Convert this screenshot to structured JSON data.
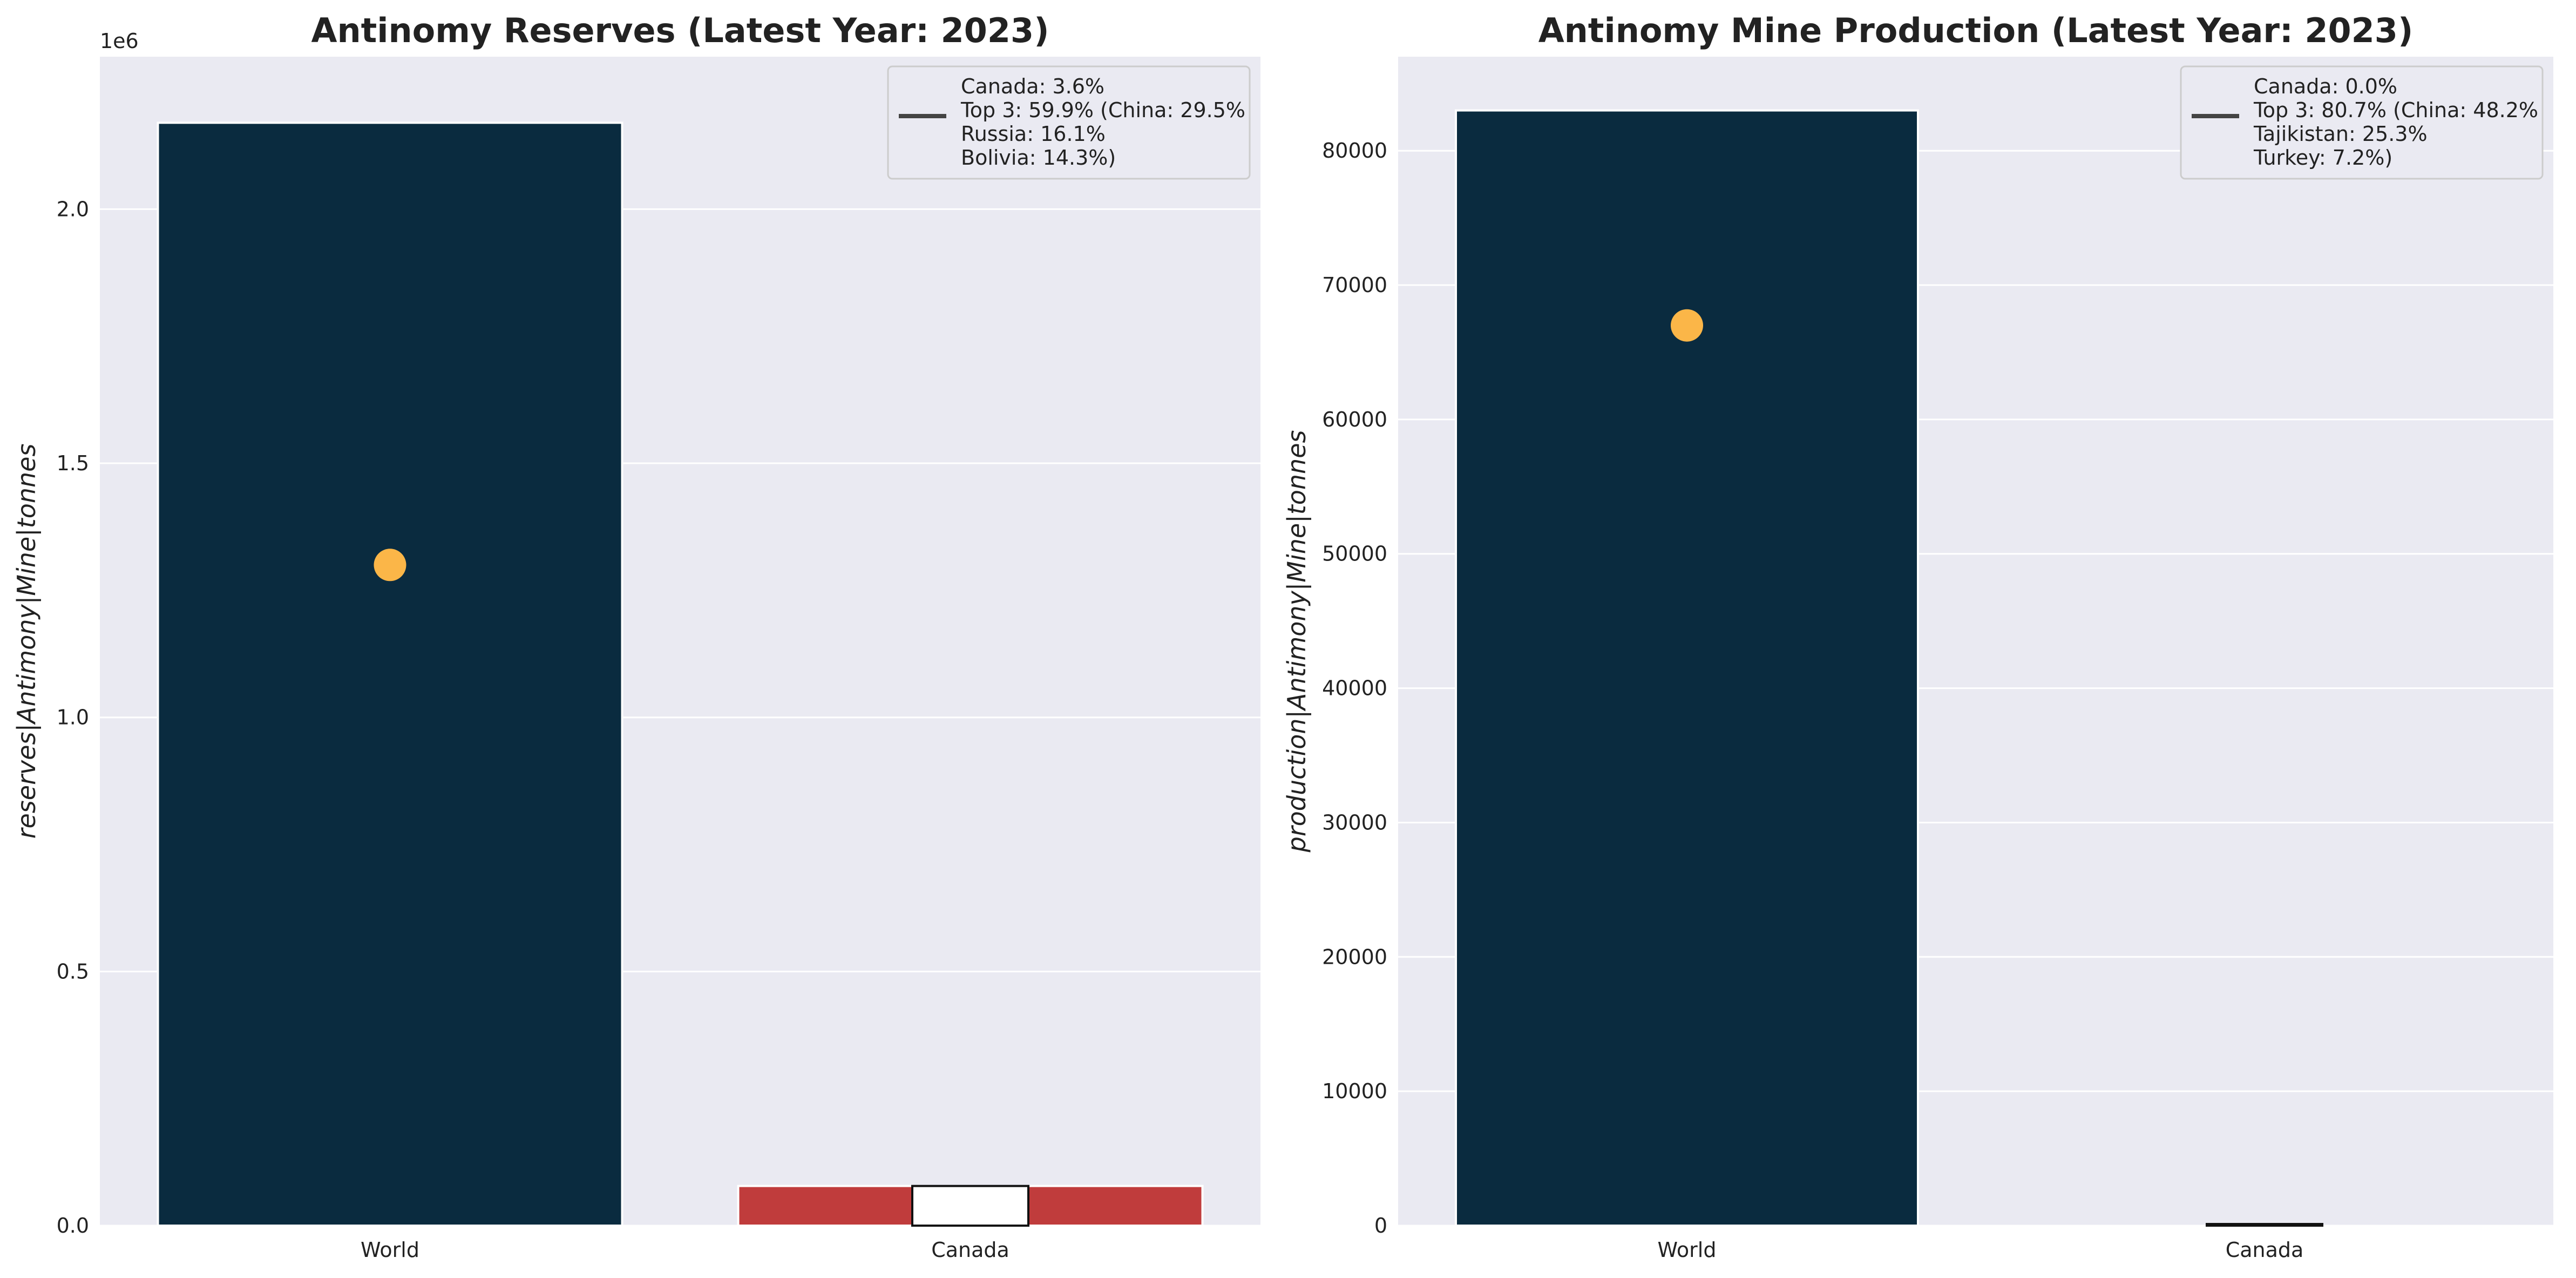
{
  "chart_data": [
    {
      "type": "bar",
      "title": "Antinomy Reserves (Latest Year: 2023)",
      "ylabel": "reserves|Antimony|Mine|tonnes",
      "offset_text": "1e6",
      "ylim": [
        0,
        2300000
      ],
      "yticks": [
        0,
        500000,
        1000000,
        1500000,
        2000000
      ],
      "ytick_labels": [
        "0.0",
        "0.5",
        "1.0",
        "1.5",
        "2.0"
      ],
      "categories": [
        "World",
        "Canada"
      ],
      "values": [
        2170000,
        78000
      ],
      "bar_colors": [
        "#0a2b3f",
        "#c03c3c"
      ],
      "overlay_box": {
        "category": "Canada",
        "value": 78000,
        "color": "#ffffff",
        "edge": "#111111"
      },
      "marker": {
        "category": "World",
        "value": 1300000,
        "color": "#fbb648"
      },
      "legend": {
        "placement": "top-right",
        "lines": [
          "Canada: 3.6%",
          "Top 3: 59.9% (China: 29.5%",
          "Russia: 16.1%",
          "Bolivia: 14.3%)"
        ],
        "line_color": "#444444"
      },
      "grid": true,
      "background": "#eaeaf2"
    },
    {
      "type": "bar",
      "title": "Antinomy Mine Production (Latest Year: 2023)",
      "ylabel": "production|Antimony|Mine|tonnes",
      "offset_text": "",
      "ylim": [
        0,
        87000
      ],
      "yticks": [
        0,
        10000,
        20000,
        30000,
        40000,
        50000,
        60000,
        70000,
        80000
      ],
      "ytick_labels": [
        "0",
        "10000",
        "20000",
        "30000",
        "40000",
        "50000",
        "60000",
        "70000",
        "80000"
      ],
      "categories": [
        "World",
        "Canada"
      ],
      "values": [
        83000,
        0
      ],
      "bar_colors": [
        "#0a2b3f",
        "#c03c3c"
      ],
      "overlay_box": {
        "category": "Canada",
        "value": 0,
        "color": "#ffffff",
        "edge": "#111111"
      },
      "marker": {
        "category": "World",
        "value": 67000,
        "color": "#fbb648"
      },
      "legend": {
        "placement": "top-right",
        "lines": [
          "Canada: 0.0%",
          "Top 3: 80.7% (China: 48.2%",
          "Tajikistan: 25.3%",
          "Turkey: 7.2%)"
        ],
        "line_color": "#444444"
      },
      "grid": true,
      "background": "#eaeaf2"
    }
  ]
}
